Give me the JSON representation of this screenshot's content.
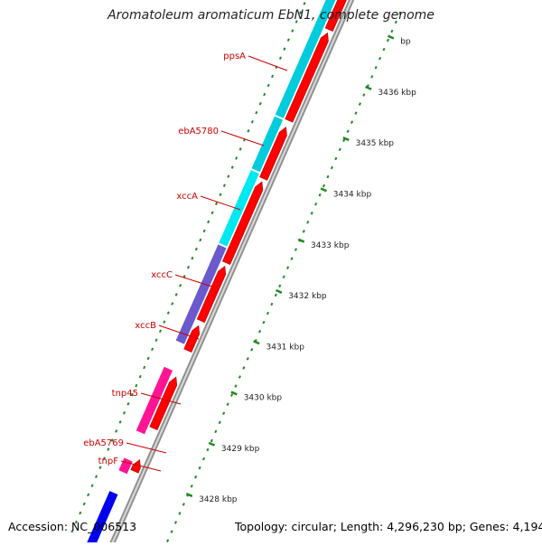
{
  "header": {
    "title": "Aromatoleum aromaticum EbN1, complete genome"
  },
  "footer": {
    "accession": "Accession: NC_006513",
    "summary": "Topology: circular; Length: 4,296,230 bp; Genes: 4,194"
  },
  "map": {
    "ticks": [
      {
        "label": "bp",
        "kbp": 3437
      },
      {
        "label": "3436 kbp",
        "kbp": 3436
      },
      {
        "label": "3435 kbp",
        "kbp": 3435
      },
      {
        "label": "3434 kbp",
        "kbp": 3434
      },
      {
        "label": "3433 kbp",
        "kbp": 3433
      },
      {
        "label": "3432 kbp",
        "kbp": 3432
      },
      {
        "label": "3431 kbp",
        "kbp": 3431
      },
      {
        "label": "3430 kbp",
        "kbp": 3430
      },
      {
        "label": "3429 kbp",
        "kbp": 3429
      },
      {
        "label": "3428 kbp",
        "kbp": 3428
      }
    ],
    "gene_labels": [
      {
        "name": "ppsA",
        "color": "#cc0000"
      },
      {
        "name": "ebA5780",
        "color": "#cc0000"
      },
      {
        "name": "xccA",
        "color": "#cc0000"
      },
      {
        "name": "xccC",
        "color": "#cc0000"
      },
      {
        "name": "xccB",
        "color": "#cc0000"
      },
      {
        "name": "tnp45",
        "color": "#cc0000"
      },
      {
        "name": "ebA5769",
        "color": "#cc0000"
      },
      {
        "name": "tnpF",
        "color": "#cc0000"
      }
    ],
    "colors": {
      "cds_forward": "#ff0000",
      "feature_cyan": "#00ccdd",
      "feature_violet": "#6a5acd",
      "feature_magenta": "#ff1493",
      "feature_blue": "#0000ee",
      "backbone": "#909090",
      "tick_marks": "#1e8a1e"
    }
  }
}
